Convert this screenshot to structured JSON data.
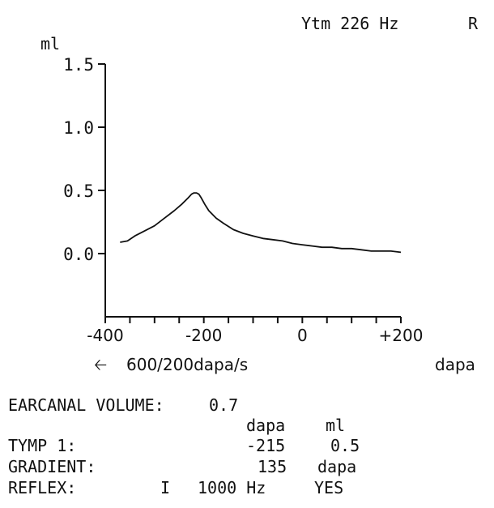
{
  "header": {
    "measurement": "Ytm 226 Hz",
    "ear": "R"
  },
  "chart_data": {
    "type": "line",
    "ylabel": "ml",
    "xlabel": "dapa",
    "ylim": [
      -0.5,
      1.5
    ],
    "xlim": [
      -400,
      200
    ],
    "y_ticks": [
      {
        "value": 1.5,
        "label": "1.5"
      },
      {
        "value": 1.0,
        "label": "1.0"
      },
      {
        "value": 0.5,
        "label": "0.5"
      },
      {
        "value": 0.0,
        "label": "0.0"
      }
    ],
    "x_ticks": [
      {
        "value": -400,
        "label": "-400"
      },
      {
        "value": -200,
        "label": "-200"
      },
      {
        "value": 0,
        "label": "0"
      },
      {
        "value": 200,
        "label": "+200"
      }
    ],
    "grid": false,
    "sweep_label": "600/200dapa/s",
    "series": [
      {
        "x": [
          -370,
          -355,
          -340,
          -320,
          -300,
          -280,
          -260,
          -245,
          -232,
          -225,
          -220,
          -215,
          -210,
          -205,
          -198,
          -190,
          -175,
          -160,
          -140,
          -120,
          -100,
          -80,
          -60,
          -40,
          -20,
          0,
          20,
          40,
          60,
          80,
          100,
          120,
          140,
          160,
          180,
          200
        ],
        "y": [
          0.09,
          0.1,
          0.14,
          0.18,
          0.22,
          0.28,
          0.34,
          0.39,
          0.44,
          0.47,
          0.48,
          0.48,
          0.47,
          0.44,
          0.39,
          0.34,
          0.28,
          0.24,
          0.19,
          0.16,
          0.14,
          0.12,
          0.11,
          0.1,
          0.08,
          0.07,
          0.06,
          0.05,
          0.05,
          0.04,
          0.04,
          0.03,
          0.02,
          0.02,
          0.02,
          0.01
        ]
      }
    ]
  },
  "results": {
    "earcanal_volume_label": "EARCANAL VOLUME:",
    "earcanal_volume_value": "0.7",
    "col_pressure_header": "dapa",
    "col_volume_header": "ml",
    "tymp_label": "TYMP 1:",
    "tymp_pressure": "-215",
    "tymp_volume": "0.5",
    "gradient_label": "GRADIENT:",
    "gradient_value": "135",
    "gradient_unit": "dapa",
    "reflex_label": "REFLEX:",
    "reflex_ear": "I",
    "reflex_freq": "1000 Hz",
    "reflex_result": "YES"
  }
}
